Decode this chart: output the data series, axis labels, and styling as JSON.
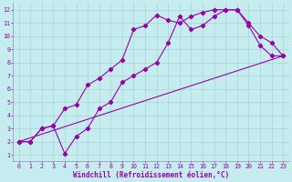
{
  "xlabel": "Windchill (Refroidissement éolien,°C)",
  "bg_color": "#c5ecee",
  "line_color": "#9900aa",
  "grid_color": "#aad4d8",
  "xlim": [
    -0.5,
    23.5
  ],
  "ylim": [
    0.5,
    12.5
  ],
  "xticks": [
    0,
    1,
    2,
    3,
    4,
    5,
    6,
    7,
    8,
    9,
    10,
    11,
    12,
    13,
    14,
    15,
    16,
    17,
    18,
    19,
    20,
    21,
    22,
    23
  ],
  "yticks": [
    1,
    2,
    3,
    4,
    5,
    6,
    7,
    8,
    9,
    10,
    11,
    12
  ],
  "line1_x": [
    0,
    1,
    2,
    3,
    4,
    5,
    6,
    7,
    8,
    9,
    10,
    11,
    12,
    13,
    14,
    15,
    16,
    17,
    18,
    19,
    20,
    21,
    22,
    23
  ],
  "line1_y": [
    2,
    2,
    3,
    3.2,
    1.1,
    2.4,
    3.0,
    4.5,
    5.0,
    6.5,
    7.0,
    7.5,
    8.0,
    9.5,
    11.5,
    10.5,
    10.8,
    11.5,
    12.0,
    12.0,
    11.0,
    10.0,
    9.5,
    8.5
  ],
  "line2_x": [
    0,
    1,
    2,
    3,
    4,
    5,
    6,
    7,
    8,
    9,
    10,
    11,
    12,
    13,
    14,
    15,
    16,
    17,
    18,
    19,
    20,
    21,
    22,
    23
  ],
  "line2_y": [
    2,
    2,
    3,
    3.2,
    4.5,
    4.8,
    6.3,
    6.8,
    7.5,
    8.2,
    10.5,
    10.8,
    11.6,
    11.2,
    11.0,
    11.5,
    11.8,
    12.0,
    12.0,
    12.0,
    10.8,
    9.3,
    8.5,
    8.5
  ],
  "line3_x": [
    0,
    23
  ],
  "line3_y": [
    2,
    8.5
  ],
  "xlabel_fontsize": 5.5,
  "tick_fontsize": 4.8
}
